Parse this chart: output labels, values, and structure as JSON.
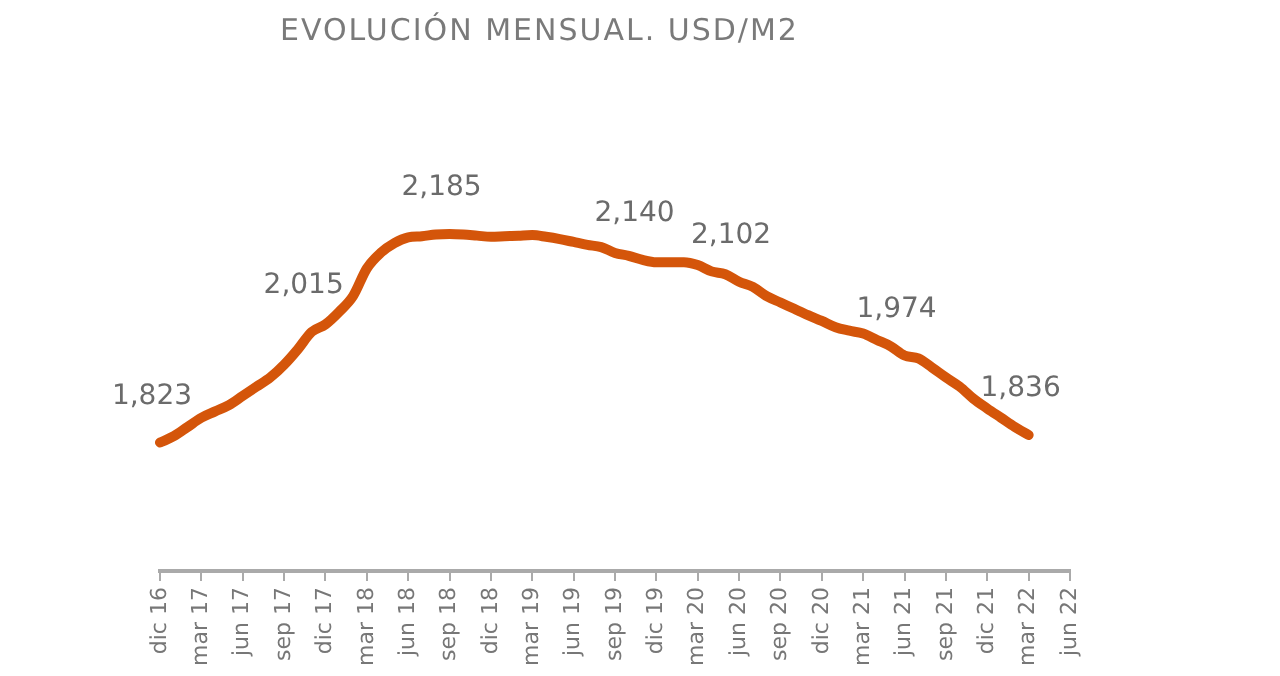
{
  "chart_data": {
    "type": "line",
    "title": "EVOLUCIÓN MENSUAL. USD/M2",
    "categories": [
      "dic 16",
      null,
      null,
      "mar 17",
      null,
      null,
      "jun 17",
      null,
      null,
      "sep 17",
      null,
      null,
      "dic 17",
      null,
      null,
      "mar 18",
      null,
      null,
      "jun 18",
      null,
      null,
      "sep 18",
      null,
      null,
      "dic 18",
      null,
      null,
      "mar 19",
      null,
      null,
      "jun 19",
      null,
      null,
      "sep 19",
      null,
      null,
      "dic 19",
      null,
      null,
      "mar 20",
      null,
      null,
      "jun 20",
      null,
      null,
      "sep 20",
      null,
      null,
      "dic 20",
      null,
      null,
      "mar 21",
      null,
      null,
      "jun 21",
      null,
      null,
      "sep 21",
      null,
      null,
      "dic 21",
      null,
      null,
      "mar 22",
      null,
      null,
      "jun 22"
    ],
    "series": [
      {
        "color": "#d4550a",
        "values": [
          1823,
          1834,
          1850,
          1866,
          1877,
          1888,
          1904,
          1920,
          1936,
          1958,
          1985,
          2015,
          2028,
          2050,
          2077,
          2125,
          2152,
          2169,
          2179,
          2181,
          2184,
          2185,
          2184,
          2182,
          2180,
          2181,
          2182,
          2183,
          2180,
          2176,
          2171,
          2166,
          2162,
          2152,
          2147,
          2140,
          2136,
          2136,
          2136,
          2131,
          2120,
          2115,
          2102,
          2093,
          2077,
          2066,
          2055,
          2044,
          2034,
          2023,
          2017,
          2012,
          2001,
          1990,
          1974,
          1969,
          1953,
          1936,
          1920,
          1899,
          1882,
          1866,
          1850,
          1836,
          null,
          null,
          null
        ],
        "value_labels": [
          "1,823",
          null,
          null,
          null,
          null,
          null,
          null,
          null,
          null,
          null,
          null,
          "2,015",
          null,
          null,
          null,
          null,
          null,
          null,
          null,
          null,
          null,
          "2,185",
          null,
          null,
          null,
          null,
          null,
          null,
          null,
          null,
          null,
          null,
          null,
          null,
          null,
          "2,140",
          null,
          null,
          null,
          null,
          null,
          null,
          "2,102",
          null,
          null,
          null,
          null,
          null,
          null,
          null,
          null,
          null,
          null,
          null,
          "1,974",
          null,
          null,
          null,
          null,
          null,
          null,
          null,
          null,
          "1,836",
          null,
          null,
          null
        ]
      }
    ],
    "marker": "none",
    "line_style": "solid",
    "grid": false,
    "legend": false
  }
}
